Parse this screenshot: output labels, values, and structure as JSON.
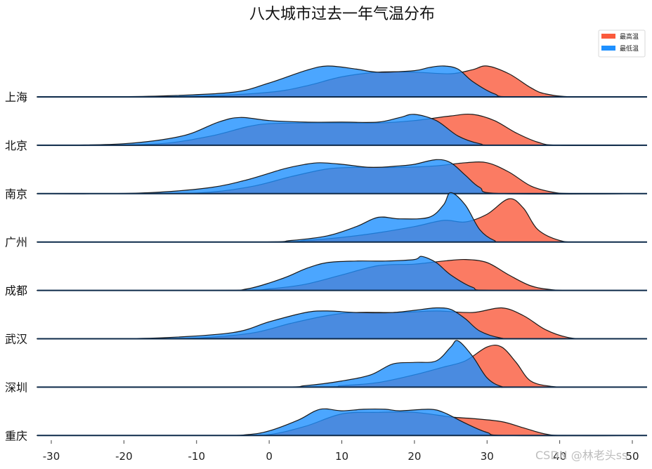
{
  "chart_data": {
    "type": "ridgeline",
    "title": "八大城市过去一年气温分布",
    "xlabel": "",
    "ylabel": "",
    "xlim": [
      -32,
      52
    ],
    "xticks": [
      -30,
      -20,
      -10,
      0,
      10,
      20,
      30,
      40,
      50
    ],
    "grid": false,
    "legend_position": "top-right",
    "series": [
      {
        "name": "最高温",
        "color": "#FA5A3C"
      },
      {
        "name": "最低温",
        "color": "#1E90FF"
      }
    ],
    "categories": [
      "上海",
      "北京",
      "南京",
      "广州",
      "成都",
      "武汉",
      "深圳",
      "重庆"
    ],
    "ridges": [
      {
        "city": "上海",
        "high": [
          [
            -20,
            0
          ],
          [
            -10,
            0.02
          ],
          [
            0,
            0.15
          ],
          [
            5,
            0.35
          ],
          [
            10,
            0.65
          ],
          [
            15,
            0.8
          ],
          [
            20,
            0.8
          ],
          [
            25,
            0.75
          ],
          [
            28,
            0.88
          ],
          [
            30,
            1.0
          ],
          [
            33,
            0.75
          ],
          [
            36,
            0.3
          ],
          [
            38,
            0.1
          ],
          [
            42,
            0
          ]
        ],
        "low": [
          [
            -25,
            0
          ],
          [
            -15,
            0.03
          ],
          [
            -5,
            0.15
          ],
          [
            0,
            0.45
          ],
          [
            5,
            0.85
          ],
          [
            8,
            1.0
          ],
          [
            12,
            0.9
          ],
          [
            15,
            0.8
          ],
          [
            20,
            0.85
          ],
          [
            22,
            0.95
          ],
          [
            24,
            1.0
          ],
          [
            26,
            0.9
          ],
          [
            28,
            0.5
          ],
          [
            31,
            0.1
          ],
          [
            34,
            0
          ]
        ]
      },
      {
        "city": "北京",
        "high": [
          [
            -25,
            0
          ],
          [
            -15,
            0.05
          ],
          [
            -8,
            0.3
          ],
          [
            -3,
            0.6
          ],
          [
            0,
            0.7
          ],
          [
            5,
            0.72
          ],
          [
            10,
            0.72
          ],
          [
            15,
            0.72
          ],
          [
            20,
            0.8
          ],
          [
            25,
            0.95
          ],
          [
            28,
            1.0
          ],
          [
            31,
            0.8
          ],
          [
            34,
            0.4
          ],
          [
            37,
            0.1
          ],
          [
            40,
            0
          ]
        ],
        "low": [
          [
            -30,
            0
          ],
          [
            -20,
            0.05
          ],
          [
            -12,
            0.3
          ],
          [
            -7,
            0.75
          ],
          [
            -4,
            0.9
          ],
          [
            0,
            0.8
          ],
          [
            5,
            0.75
          ],
          [
            10,
            0.75
          ],
          [
            15,
            0.75
          ],
          [
            18,
            0.9
          ],
          [
            20,
            1.0
          ],
          [
            23,
            0.8
          ],
          [
            26,
            0.3
          ],
          [
            29,
            0.05
          ],
          [
            32,
            0
          ]
        ],
        "scale_low": 1.0
      },
      {
        "city": "南京",
        "high": [
          [
            -15,
            0
          ],
          [
            -8,
            0.05
          ],
          [
            -2,
            0.25
          ],
          [
            3,
            0.55
          ],
          [
            8,
            0.8
          ],
          [
            12,
            0.85
          ],
          [
            18,
            0.85
          ],
          [
            23,
            0.9
          ],
          [
            27,
            1.0
          ],
          [
            30,
            1.0
          ],
          [
            33,
            0.7
          ],
          [
            36,
            0.25
          ],
          [
            39,
            0.05
          ],
          [
            42,
            0
          ]
        ],
        "low": [
          [
            -22,
            0
          ],
          [
            -15,
            0.05
          ],
          [
            -8,
            0.2
          ],
          [
            -3,
            0.45
          ],
          [
            2,
            0.8
          ],
          [
            5,
            0.95
          ],
          [
            7,
            1.0
          ],
          [
            10,
            0.95
          ],
          [
            14,
            0.85
          ],
          [
            18,
            0.9
          ],
          [
            20,
            0.95
          ],
          [
            23,
            1.1
          ],
          [
            25,
            1.0
          ],
          [
            27,
            0.6
          ],
          [
            29,
            0.2
          ],
          [
            32,
            0
          ]
        ]
      },
      {
        "city": "广州",
        "high": [
          [
            0,
            0
          ],
          [
            5,
            0.05
          ],
          [
            10,
            0.15
          ],
          [
            15,
            0.3
          ],
          [
            20,
            0.5
          ],
          [
            24,
            0.7
          ],
          [
            27,
            0.65
          ],
          [
            30,
            0.9
          ],
          [
            33,
            1.4
          ],
          [
            35,
            1.1
          ],
          [
            37,
            0.4
          ],
          [
            40,
            0.05
          ],
          [
            43,
            0
          ]
        ],
        "low": [
          [
            -2,
            0
          ],
          [
            3,
            0.05
          ],
          [
            8,
            0.2
          ],
          [
            12,
            0.5
          ],
          [
            15,
            0.8
          ],
          [
            18,
            0.75
          ],
          [
            22,
            0.8
          ],
          [
            24,
            1.2
          ],
          [
            25,
            1.6
          ],
          [
            27,
            1.2
          ],
          [
            29,
            0.4
          ],
          [
            31,
            0.05
          ],
          [
            33,
            0
          ]
        ]
      },
      {
        "city": "成都",
        "high": [
          [
            -5,
            0
          ],
          [
            0,
            0.05
          ],
          [
            5,
            0.2
          ],
          [
            10,
            0.5
          ],
          [
            15,
            0.8
          ],
          [
            20,
            0.85
          ],
          [
            24,
            0.95
          ],
          [
            27,
            1.0
          ],
          [
            30,
            0.9
          ],
          [
            33,
            0.5
          ],
          [
            36,
            0.15
          ],
          [
            39,
            0.02
          ],
          [
            42,
            0
          ]
        ],
        "low": [
          [
            -8,
            0
          ],
          [
            -3,
            0.05
          ],
          [
            2,
            0.4
          ],
          [
            5,
            0.7
          ],
          [
            8,
            0.9
          ],
          [
            12,
            0.95
          ],
          [
            16,
            0.95
          ],
          [
            20,
            1.0
          ],
          [
            21,
            1.1
          ],
          [
            23,
            0.9
          ],
          [
            25,
            0.5
          ],
          [
            28,
            0.1
          ],
          [
            31,
            0
          ]
        ]
      },
      {
        "city": "武汉",
        "high": [
          [
            -15,
            0
          ],
          [
            -8,
            0.05
          ],
          [
            -2,
            0.2
          ],
          [
            3,
            0.5
          ],
          [
            8,
            0.75
          ],
          [
            12,
            0.85
          ],
          [
            18,
            0.85
          ],
          [
            23,
            0.9
          ],
          [
            28,
            0.85
          ],
          [
            32,
            1.0
          ],
          [
            35,
            0.75
          ],
          [
            38,
            0.3
          ],
          [
            41,
            0.05
          ],
          [
            44,
            0
          ]
        ],
        "low": [
          [
            -25,
            0
          ],
          [
            -15,
            0.03
          ],
          [
            -5,
            0.2
          ],
          [
            0,
            0.55
          ],
          [
            5,
            0.85
          ],
          [
            8,
            0.9
          ],
          [
            12,
            0.85
          ],
          [
            17,
            0.85
          ],
          [
            21,
            0.95
          ],
          [
            23,
            1.0
          ],
          [
            25,
            0.95
          ],
          [
            27,
            0.65
          ],
          [
            29,
            0.25
          ],
          [
            32,
            0.02
          ],
          [
            35,
            0
          ]
        ]
      },
      {
        "city": "深圳",
        "high": [
          [
            5,
            0
          ],
          [
            10,
            0.05
          ],
          [
            15,
            0.15
          ],
          [
            20,
            0.4
          ],
          [
            24,
            0.65
          ],
          [
            27,
            0.85
          ],
          [
            30,
            1.3
          ],
          [
            32,
            1.3
          ],
          [
            34,
            0.8
          ],
          [
            36,
            0.2
          ],
          [
            39,
            0.02
          ],
          [
            42,
            0
          ]
        ],
        "low": [
          [
            0,
            0
          ],
          [
            5,
            0.05
          ],
          [
            10,
            0.2
          ],
          [
            14,
            0.4
          ],
          [
            17,
            0.75
          ],
          [
            20,
            0.8
          ],
          [
            23,
            0.85
          ],
          [
            25,
            1.3
          ],
          [
            26,
            1.5
          ],
          [
            28,
            1.0
          ],
          [
            30,
            0.3
          ],
          [
            32,
            0.02
          ],
          [
            34,
            0
          ]
        ]
      },
      {
        "city": "重庆",
        "high": [
          [
            -5,
            0
          ],
          [
            0,
            0.03
          ],
          [
            5,
            0.3
          ],
          [
            10,
            0.7
          ],
          [
            15,
            0.75
          ],
          [
            20,
            0.75
          ],
          [
            25,
            0.6
          ],
          [
            28,
            0.55
          ],
          [
            32,
            0.45
          ],
          [
            35,
            0.25
          ],
          [
            38,
            0.05
          ],
          [
            41,
            0
          ]
        ],
        "low": [
          [
            -8,
            0
          ],
          [
            -3,
            0.03
          ],
          [
            0,
            0.15
          ],
          [
            4,
            0.5
          ],
          [
            7,
            0.85
          ],
          [
            10,
            0.8
          ],
          [
            13,
            0.85
          ],
          [
            16,
            0.85
          ],
          [
            18,
            0.8
          ],
          [
            22,
            0.85
          ],
          [
            24,
            0.75
          ],
          [
            27,
            0.4
          ],
          [
            30,
            0.1
          ],
          [
            33,
            0
          ]
        ]
      }
    ]
  },
  "watermark": "CSDN @林老头ss"
}
